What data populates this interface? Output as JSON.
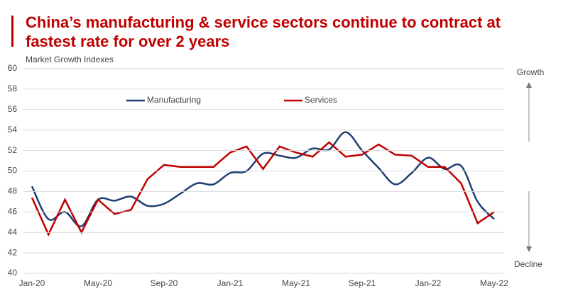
{
  "chart_data": {
    "type": "line",
    "title": "China’s manufacturing & service sectors continue to contract at fastest rate for over 2 years",
    "subtitle": "Market Growth Indexes",
    "categories": [
      "Jan-20",
      null,
      null,
      null,
      "May-20",
      null,
      null,
      null,
      "Sep-20",
      null,
      null,
      null,
      "Jan-21",
      null,
      null,
      null,
      "May-21",
      null,
      null,
      null,
      "Sep-21",
      null,
      null,
      null,
      "Jan-22",
      null,
      null,
      null,
      "May-22"
    ],
    "series": [
      {
        "name": "Manufacturing",
        "color": "#1f3f73",
        "smooth": true,
        "values": [
          48.5,
          45.3,
          46.0,
          44.6,
          47.2,
          47.1,
          47.5,
          46.6,
          46.8,
          47.8,
          48.8,
          48.7,
          49.8,
          50.0,
          51.7,
          51.5,
          51.3,
          52.2,
          52.1,
          53.8,
          52.0,
          50.3,
          48.7,
          49.8,
          51.3,
          50.2,
          50.5,
          47.0,
          45.3
        ]
      },
      {
        "name": "Services",
        "color": "#c00000",
        "smooth": false,
        "values": [
          47.4,
          43.8,
          47.2,
          44.0,
          47.2,
          45.8,
          46.2,
          49.2,
          50.6,
          50.4,
          50.4,
          50.4,
          51.8,
          52.4,
          50.2,
          52.4,
          51.8,
          51.4,
          52.8,
          51.4,
          51.6,
          52.6,
          51.6,
          51.5,
          50.4,
          50.4,
          48.8,
          44.9,
          46.0
        ]
      }
    ],
    "ylim": [
      40,
      60
    ],
    "yticks": [
      40,
      42,
      44,
      46,
      48,
      50,
      52,
      54,
      56,
      58,
      60
    ],
    "grid": true,
    "reference_line": 50,
    "annotations": [
      "Growth",
      "Decline"
    ]
  }
}
